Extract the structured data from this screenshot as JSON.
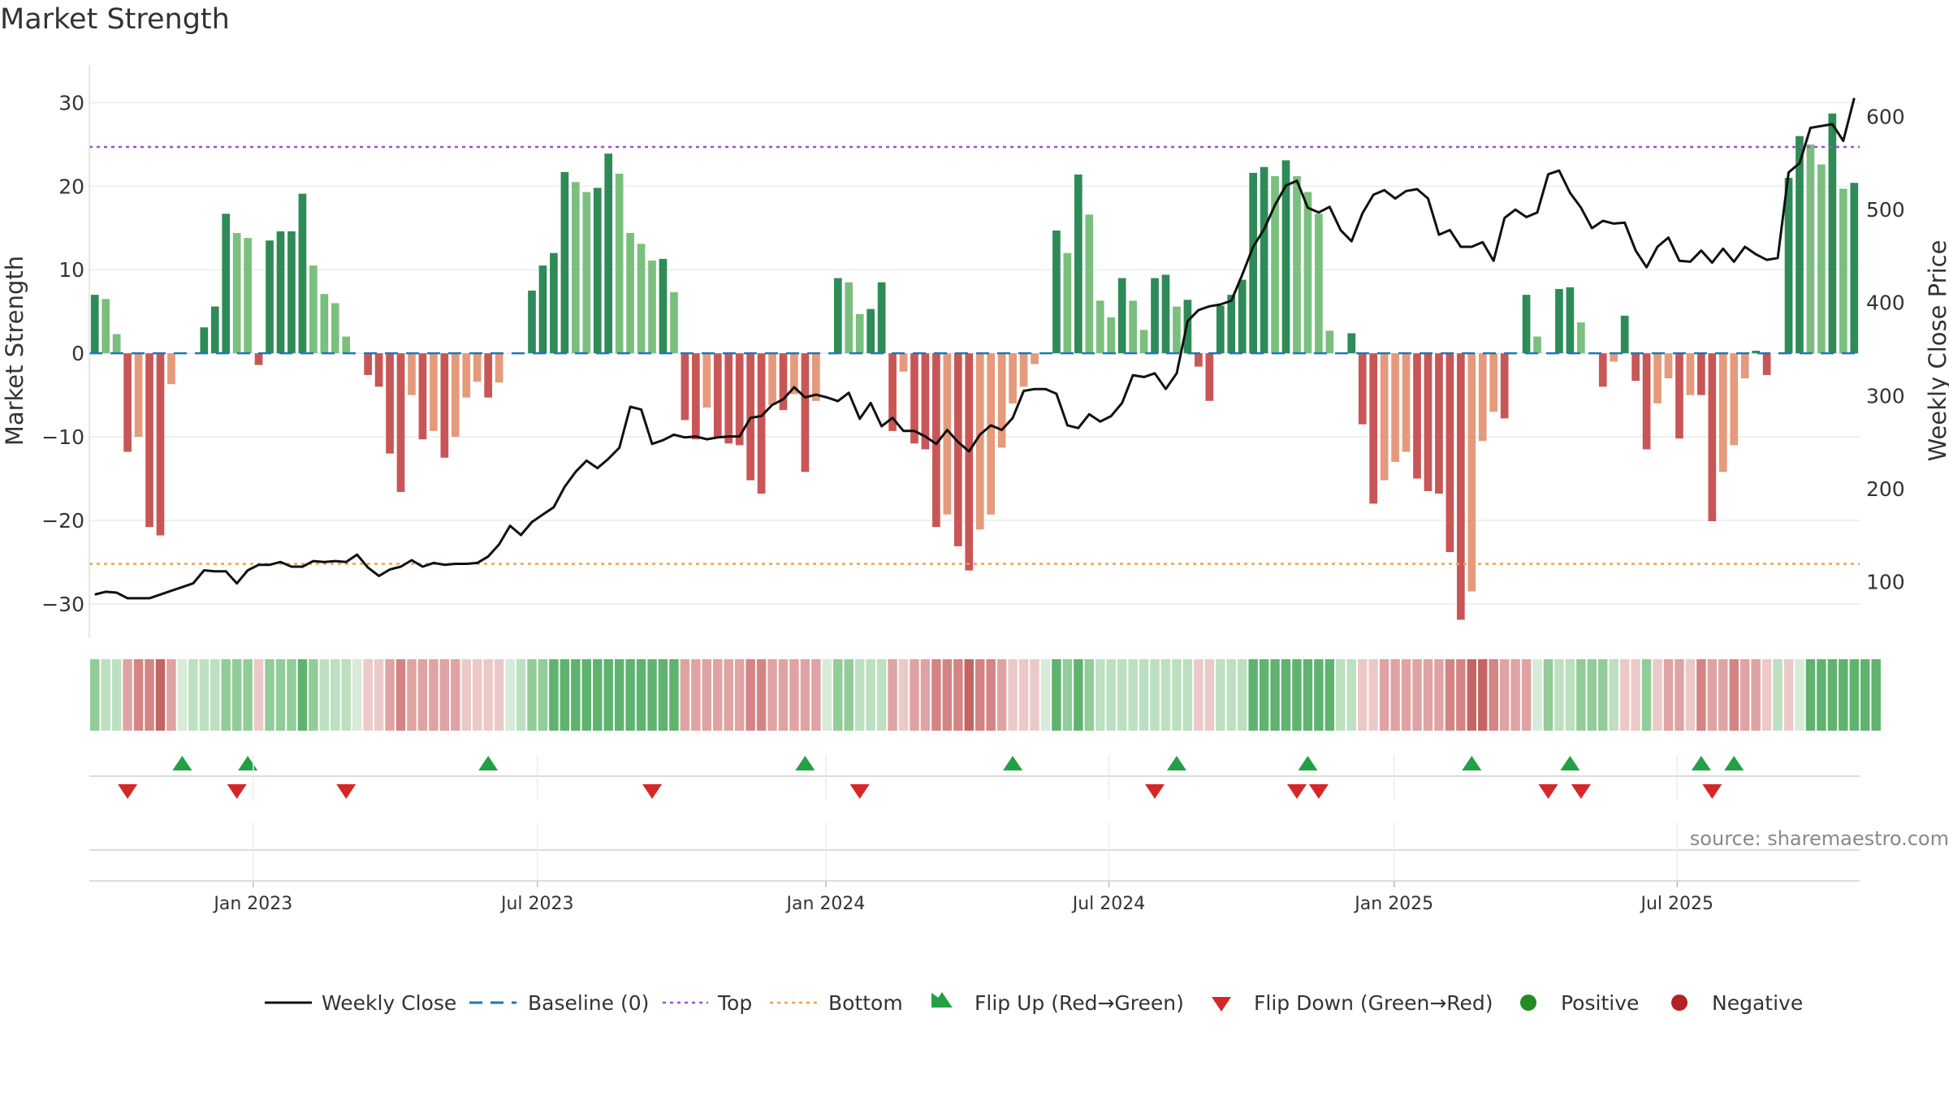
{
  "chart_data": {
    "type": "bar+line",
    "title": "Market Strength",
    "source": "source: sharemaestro.com",
    "ylabel_left": "Market Strength",
    "ylabel_right": "Weekly Close Price",
    "ylim_left": [
      -34,
      35
    ],
    "ylim_right": [
      40,
      660
    ],
    "yticks_left": [
      "30",
      "20",
      "10",
      "0",
      "−10",
      "−20",
      "−30"
    ],
    "yticks_left_values": [
      30,
      20,
      10,
      0,
      -10,
      -20,
      -30
    ],
    "yticks_right": [
      "600",
      "500",
      "400",
      "300",
      "200",
      "100"
    ],
    "yticks_right_values": [
      600,
      500,
      400,
      300,
      200,
      100
    ],
    "x_tick_labels": [
      "Jan 2023",
      "Jul 2023",
      "Jan 2024",
      "Jul 2024",
      "Jan 2025",
      "Jul 2025"
    ],
    "x_tick_weeks": [
      15,
      41,
      67.4,
      93.3,
      119.4,
      145.3
    ],
    "thresholds": {
      "top": 24.7,
      "bottom": -25.2,
      "baseline": 0
    },
    "strength": [
      7,
      6.5,
      2.3,
      -11.8,
      -10,
      -20.8,
      -21.8,
      -3.7,
      0,
      0,
      3.1,
      5.6,
      16.7,
      14.4,
      13.8,
      -1.4,
      13.5,
      14.6,
      14.6,
      19.1,
      10.5,
      7.1,
      6,
      2,
      0,
      -2.6,
      -4,
      -12,
      -16.6,
      -5,
      -10.3,
      -9.3,
      -12.5,
      -10,
      -5.3,
      -3.4,
      -5.3,
      -3.5,
      0,
      0,
      7.5,
      10.5,
      12,
      21.7,
      20.5,
      19.3,
      19.8,
      23.9,
      21.5,
      14.4,
      13.1,
      11.1,
      11.3,
      7.3,
      -8,
      -10.3,
      -6.5,
      -10,
      -10.8,
      -11,
      -15.2,
      -16.8,
      -6.2,
      -6.8,
      -4.9,
      -14.2,
      -5.7,
      0,
      9,
      8.5,
      4.7,
      5.3,
      8.5,
      -9.3,
      -2.2,
      -10.8,
      -11.5,
      -20.8,
      -19.3,
      -23.1,
      -26,
      -21.1,
      -19.3,
      -11.3,
      -6,
      -4,
      -1.3,
      0,
      14.7,
      12,
      21.4,
      16.6,
      6.3,
      4.3,
      9,
      6.3,
      2.8,
      9,
      9.4,
      5.6,
      6.4,
      -1.6,
      -5.7,
      5.7,
      7,
      8.8,
      21.6,
      22.3,
      21.2,
      23.1,
      21.2,
      19.3,
      16.7,
      2.7,
      0,
      2.4,
      -8.5,
      -18,
      -15.2,
      -13,
      -11.8,
      -15,
      -16.5,
      -16.8,
      -23.8,
      -31.9,
      -28.5,
      -10.5,
      -7,
      -7.8,
      0,
      7,
      2,
      0,
      7.7,
      7.9,
      3.7,
      0,
      -4,
      -1,
      4.5,
      -3.3,
      -11.5,
      -6,
      -3,
      -10.2,
      -5,
      -5,
      -20.1,
      -14.2,
      -11,
      -3,
      0.3,
      -2.6,
      0,
      21,
      26,
      25,
      22.6,
      28.7,
      19.7,
      20.4
    ],
    "close": [
      86,
      89,
      88,
      82,
      82,
      82,
      86,
      90,
      94,
      98,
      112,
      111,
      111,
      98,
      112,
      118,
      118,
      121,
      116,
      116,
      122,
      121,
      122,
      121,
      129,
      115,
      106,
      113,
      116,
      123,
      116,
      120,
      118,
      119,
      119,
      120,
      127,
      140,
      160,
      150,
      164,
      172,
      180,
      202,
      218,
      230,
      222,
      232,
      244,
      288,
      285,
      248,
      252,
      258,
      255,
      256,
      253,
      255,
      256,
      256,
      276,
      278,
      290,
      296,
      309,
      298,
      301,
      298,
      294,
      303,
      275,
      292,
      267,
      276,
      262,
      262,
      256,
      248,
      263,
      250,
      240,
      258,
      268,
      263,
      276,
      305,
      307,
      307,
      302,
      268,
      265,
      280,
      272,
      278,
      292,
      322,
      320,
      324,
      307,
      324,
      380,
      392,
      396,
      398,
      402,
      430,
      460,
      479,
      505,
      526,
      531,
      502,
      497,
      503,
      478,
      466,
      496,
      516,
      521,
      512,
      520,
      522,
      512,
      473,
      478,
      460,
      460,
      465,
      445,
      491,
      500,
      492,
      497,
      538,
      542,
      518,
      502,
      480,
      488,
      485,
      486,
      456,
      438,
      460,
      470,
      445,
      444,
      456,
      443,
      458,
      444,
      460,
      452,
      446,
      448,
      540,
      550,
      588,
      590,
      592,
      574,
      620
    ],
    "band": [
      2,
      1,
      1,
      -2,
      -3,
      -3,
      -4,
      -2,
      0,
      1,
      1,
      1,
      2,
      2,
      2,
      -1,
      2,
      2,
      2,
      3,
      2,
      1,
      1,
      1,
      0,
      -1,
      -1,
      -2,
      -3,
      -2,
      -2,
      -2,
      -2,
      -2,
      -1,
      -1,
      -1,
      -1,
      0,
      1,
      2,
      2,
      3,
      3,
      3,
      3,
      3,
      3,
      3,
      3,
      3,
      3,
      3,
      3,
      -2,
      -2,
      -2,
      -2,
      -2,
      -2,
      -3,
      -3,
      -2,
      -2,
      -2,
      -2,
      -2,
      0,
      2,
      2,
      1,
      1,
      1,
      -2,
      -1,
      -2,
      -2,
      -3,
      -3,
      -3,
      -4,
      -3,
      -3,
      -2,
      -1,
      -1,
      -1,
      0,
      3,
      2,
      3,
      2,
      1,
      1,
      1,
      1,
      1,
      1,
      1,
      1,
      1,
      -1,
      -1,
      1,
      1,
      1,
      3,
      3,
      3,
      3,
      3,
      3,
      3,
      3,
      1,
      1,
      -1,
      -1,
      -2,
      -2,
      -2,
      -2,
      -2,
      -2,
      -3,
      -3,
      -4,
      -4,
      -3,
      -2,
      -2,
      -2,
      0,
      2,
      1,
      1,
      2,
      2,
      2,
      1,
      -1,
      -1,
      2,
      -1,
      -2,
      -2,
      -1,
      -3,
      -2,
      -2,
      -3,
      -2,
      -2,
      -1,
      1,
      -1,
      0,
      3,
      3,
      3,
      3,
      3,
      3,
      3
    ],
    "flip_up_weeks": [
      8.5,
      14.5,
      36.5,
      65.5,
      84.5,
      99.5,
      111.5,
      126.5,
      135.5,
      147.5,
      150.5
    ],
    "flip_down_weeks": [
      3.5,
      13.5,
      23.5,
      51.5,
      70.5,
      97.5,
      110.5,
      112.5,
      133.5,
      136.5,
      148.5
    ],
    "legend": [
      "Weekly Close",
      "Baseline (0)",
      "Top",
      "Bottom",
      "Flip Up (Red→Green)",
      "Flip Down (Green→Red)",
      "Positive",
      "Negative"
    ]
  },
  "colors": {
    "bar_strong_pos": "#2e8b57",
    "bar_weak_pos": "#7bbf7f",
    "bar_strong_neg": "#c95656",
    "bar_weak_neg": "#e59a7c",
    "close_line": "#111111",
    "baseline": "#1f77b4",
    "top": "#9b4fd6",
    "bottom": "#f0a04b",
    "flip_up": "#22a045",
    "flip_down": "#d62728",
    "positive": "#228b22",
    "negative": "#b22222"
  }
}
